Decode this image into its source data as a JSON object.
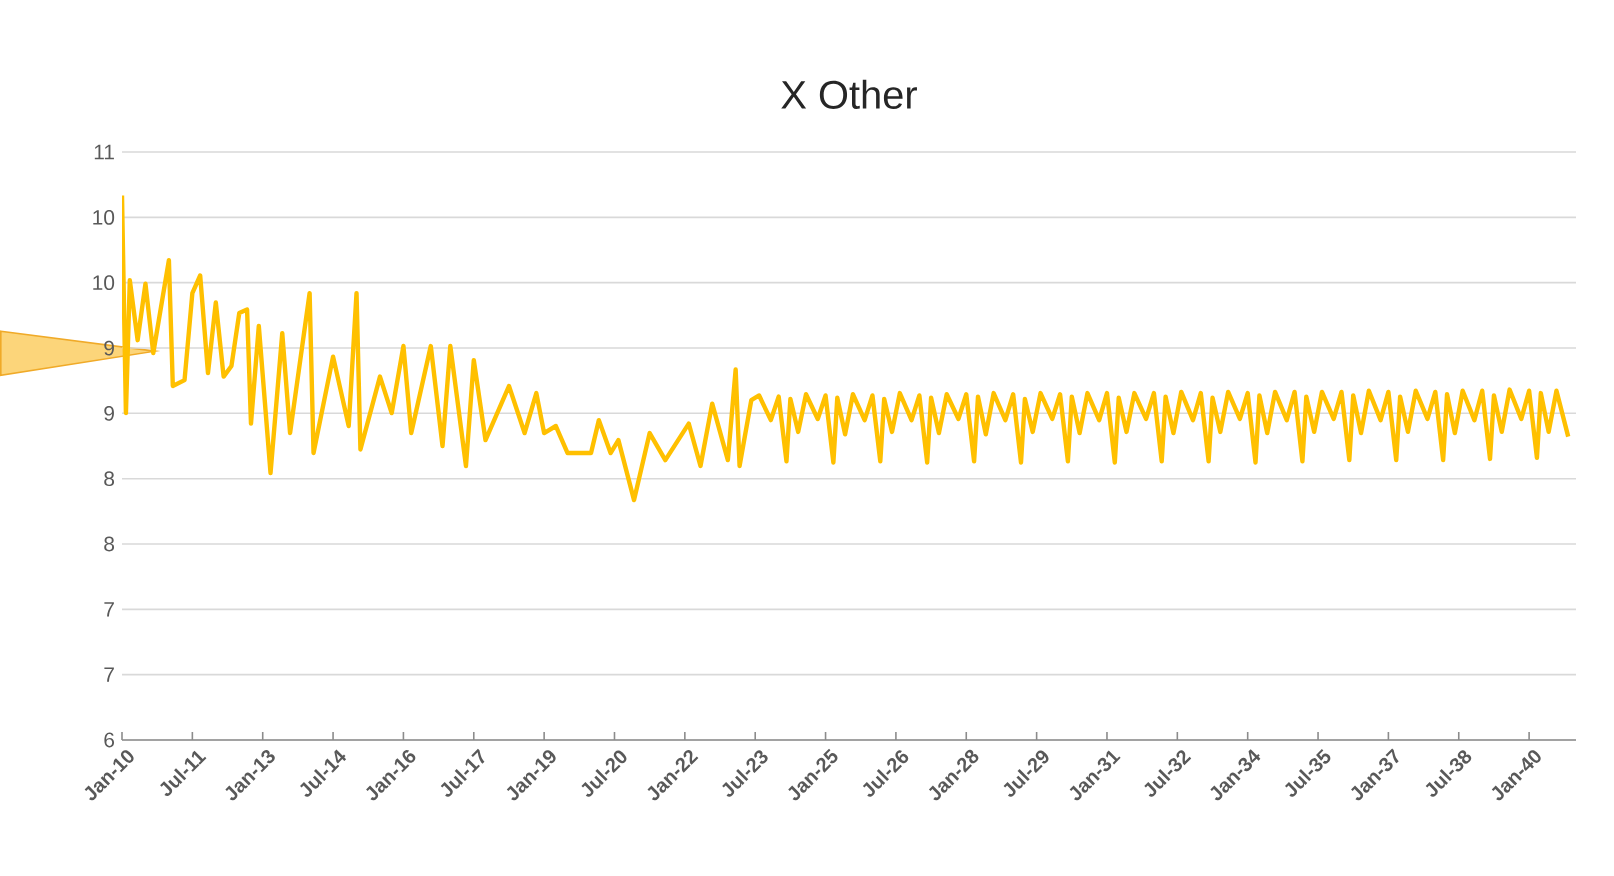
{
  "chart_data": {
    "type": "line",
    "title": "X Other",
    "x": [
      "2010-01",
      "2010-02",
      "2010-03",
      "2010-05",
      "2010-07",
      "2010-09",
      "2011-01",
      "2011-02",
      "2011-05",
      "2011-07",
      "2011-09",
      "2011-11",
      "2012-01",
      "2012-03",
      "2012-05",
      "2012-07",
      "2012-09",
      "2012-10",
      "2012-12",
      "2013-03",
      "2013-06",
      "2013-08",
      "2014-01",
      "2014-02",
      "2014-07",
      "2014-11",
      "2015-01",
      "2015-02",
      "2015-07",
      "2015-10",
      "2016-01",
      "2016-03",
      "2016-08",
      "2016-11",
      "2017-01",
      "2017-05",
      "2017-07",
      "2017-10",
      "2018-04",
      "2018-08",
      "2018-11",
      "2019-01",
      "2019-04",
      "2019-07",
      "2020-01",
      "2020-03",
      "2020-06",
      "2020-08",
      "2020-12",
      "2021-04",
      "2021-08",
      "2022-02",
      "2022-05",
      "2022-08",
      "2022-12",
      "2023-02",
      "2023-03",
      "2023-06",
      "2023-08",
      "2023-11",
      "2024-01",
      "2024-03",
      "2024-04",
      "2024-06",
      "2024-08",
      "2024-11",
      "2025-01",
      "2025-03",
      "2025-04",
      "2025-06",
      "2025-08",
      "2025-11",
      "2026-01",
      "2026-03",
      "2026-04",
      "2026-06",
      "2026-08",
      "2026-11",
      "2027-01",
      "2027-03",
      "2027-04",
      "2027-06",
      "2027-08",
      "2027-11",
      "2028-01",
      "2028-03",
      "2028-04",
      "2028-06",
      "2028-08",
      "2028-11",
      "2029-01",
      "2029-03",
      "2029-04",
      "2029-06",
      "2029-08",
      "2029-11",
      "2030-01",
      "2030-03",
      "2030-04",
      "2030-06",
      "2030-08",
      "2030-11",
      "2031-01",
      "2031-03",
      "2031-04",
      "2031-06",
      "2031-08",
      "2031-11",
      "2032-01",
      "2032-03",
      "2032-04",
      "2032-06",
      "2032-08",
      "2032-11",
      "2033-01",
      "2033-03",
      "2033-04",
      "2033-06",
      "2033-08",
      "2033-11",
      "2034-01",
      "2034-03",
      "2034-04",
      "2034-06",
      "2034-08",
      "2034-11",
      "2035-01",
      "2035-03",
      "2035-04",
      "2035-06",
      "2035-08",
      "2035-11",
      "2036-01",
      "2036-03",
      "2036-04",
      "2036-06",
      "2036-08",
      "2036-11",
      "2037-01",
      "2037-03",
      "2037-04",
      "2037-06",
      "2037-08",
      "2037-11",
      "2038-01",
      "2038-03",
      "2038-04",
      "2038-06",
      "2038-08",
      "2038-11",
      "2039-01",
      "2039-03",
      "2039-04",
      "2039-06",
      "2039-08",
      "2039-11",
      "2040-01",
      "2040-03",
      "2040-04",
      "2040-06",
      "2040-08",
      "2040-11"
    ],
    "series": [
      {
        "color": "#ffc000",
        "values": [
          10.63,
          8.78,
          9.91,
          9.4,
          9.88,
          9.29,
          10.08,
          9.01,
          9.06,
          9.8,
          9.95,
          9.12,
          9.72,
          9.09,
          9.18,
          9.63,
          9.66,
          8.69,
          9.52,
          8.27,
          9.46,
          8.61,
          9.8,
          8.44,
          9.26,
          8.67,
          9.8,
          8.47,
          9.09,
          8.78,
          9.35,
          8.61,
          9.35,
          8.5,
          9.35,
          8.33,
          9.23,
          8.55,
          9.01,
          8.61,
          8.95,
          8.61,
          8.67,
          8.44,
          8.44,
          8.72,
          8.44,
          8.55,
          8.04,
          8.61,
          8.38,
          8.69,
          8.33,
          8.86,
          8.38,
          9.15,
          8.33,
          8.89,
          8.93,
          8.72,
          8.92,
          8.37,
          8.9,
          8.62,
          8.94,
          8.73,
          8.93,
          8.36,
          8.91,
          8.6,
          8.94,
          8.72,
          8.93,
          8.37,
          8.9,
          8.62,
          8.95,
          8.72,
          8.93,
          8.36,
          8.91,
          8.61,
          8.94,
          8.73,
          8.94,
          8.37,
          8.92,
          8.6,
          8.95,
          8.72,
          8.94,
          8.36,
          8.9,
          8.62,
          8.95,
          8.73,
          8.94,
          8.37,
          8.92,
          8.61,
          8.95,
          8.72,
          8.95,
          8.36,
          8.91,
          8.62,
          8.95,
          8.73,
          8.95,
          8.37,
          8.92,
          8.61,
          8.96,
          8.72,
          8.95,
          8.37,
          8.91,
          8.62,
          8.96,
          8.73,
          8.95,
          8.36,
          8.93,
          8.61,
          8.96,
          8.72,
          8.96,
          8.37,
          8.92,
          8.62,
          8.96,
          8.73,
          8.96,
          8.38,
          8.93,
          8.61,
          8.97,
          8.72,
          8.96,
          8.38,
          8.92,
          8.62,
          8.97,
          8.73,
          8.96,
          8.38,
          8.94,
          8.61,
          8.97,
          8.72,
          8.97,
          8.39,
          8.93,
          8.62,
          8.98,
          8.73,
          8.97,
          8.4,
          8.95,
          8.62,
          8.97,
          8.58
        ]
      }
    ],
    "xlim": [
      "2010-01",
      "2041-01"
    ],
    "xticks": [
      {
        "value": "2010-01",
        "label": "Jan-10"
      },
      {
        "value": "2011-07",
        "label": "Jul-11"
      },
      {
        "value": "2013-01",
        "label": "Jan-13"
      },
      {
        "value": "2014-07",
        "label": "Jul-14"
      },
      {
        "value": "2016-01",
        "label": "Jan-16"
      },
      {
        "value": "2017-07",
        "label": "Jul-17"
      },
      {
        "value": "2019-01",
        "label": "Jan-19"
      },
      {
        "value": "2020-07",
        "label": "Jul-20"
      },
      {
        "value": "2022-01",
        "label": "Jan-22"
      },
      {
        "value": "2023-07",
        "label": "Jul-23"
      },
      {
        "value": "2025-01",
        "label": "Jan-25"
      },
      {
        "value": "2026-07",
        "label": "Jul-26"
      },
      {
        "value": "2028-01",
        "label": "Jan-28"
      },
      {
        "value": "2029-07",
        "label": "Jul-29"
      },
      {
        "value": "2031-01",
        "label": "Jan-31"
      },
      {
        "value": "2032-07",
        "label": "Jul-32"
      },
      {
        "value": "2034-01",
        "label": "Jan-34"
      },
      {
        "value": "2035-07",
        "label": "Jul-35"
      },
      {
        "value": "2037-01",
        "label": "Jan-37"
      },
      {
        "value": "2038-07",
        "label": "Jul-38"
      },
      {
        "value": "2040-01",
        "label": "Jan-40"
      }
    ],
    "ylim": [
      6,
      11
    ],
    "yticks": [
      6,
      {
        "value": 6.556,
        "label": "7"
      },
      {
        "value": 7.111,
        "label": "7"
      },
      {
        "value": 7.667,
        "label": "8"
      },
      {
        "value": 8.222,
        "label": "8"
      },
      {
        "value": 8.778,
        "label": "9"
      },
      {
        "value": 9.333,
        "label": "9"
      },
      {
        "value": 9.889,
        "label": "10"
      },
      {
        "value": 10.444,
        "label": "10"
      },
      11
    ],
    "grid": "y",
    "line_style": "solid"
  }
}
